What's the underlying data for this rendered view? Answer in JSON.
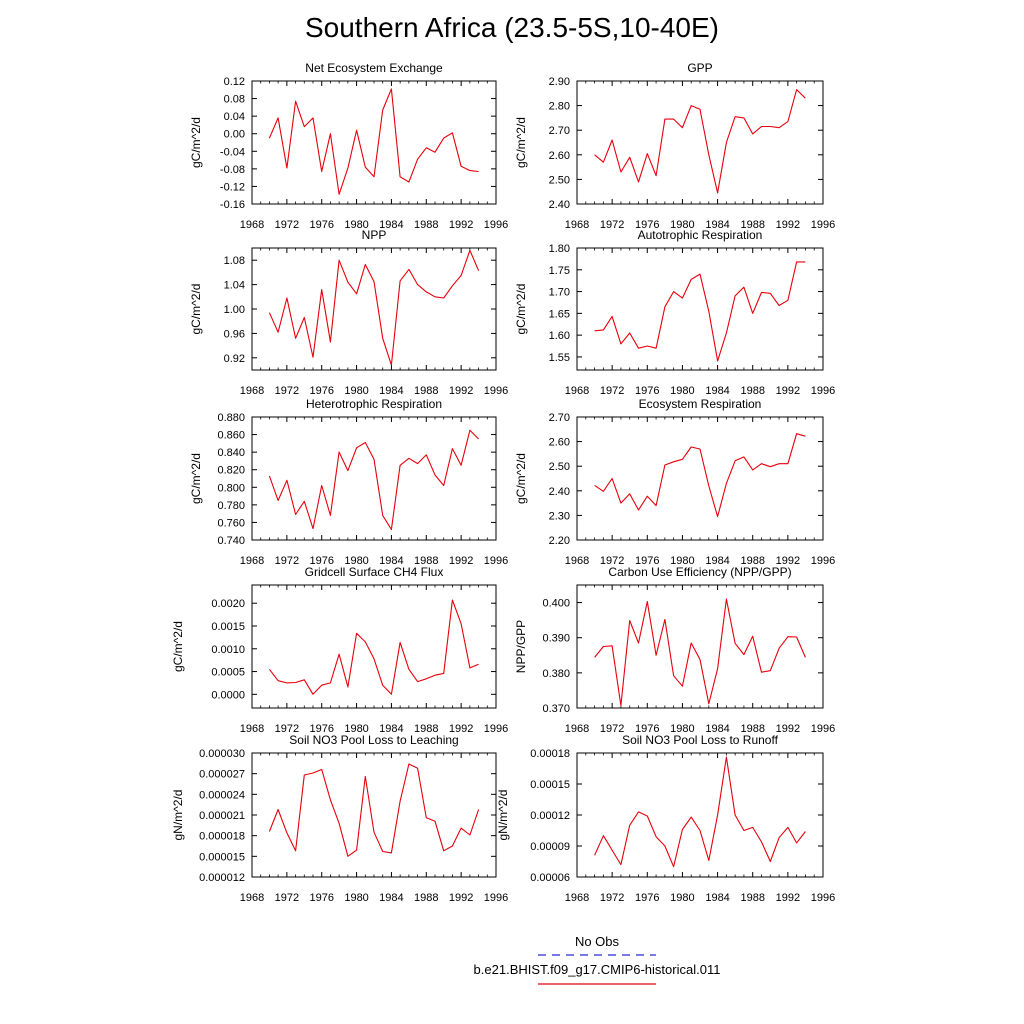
{
  "title": "Southern Africa (23.5-5S,10-40E)",
  "colors": {
    "model": "#e8000b",
    "obs": "#2b2bd8",
    "axis": "#000000"
  },
  "legend": {
    "entries": [
      {
        "label": "No Obs",
        "color": "#2b2bd8",
        "style": "dashed"
      },
      {
        "label": "b.e21.BHIST.f09_g17.CMIP6-historical.011",
        "color": "#e8000b",
        "style": "solid"
      }
    ]
  },
  "chart_data": [
    {
      "type": "line",
      "title": "Net Ecosystem Exchange",
      "ylabel": "gC/m^2/d",
      "xlim": [
        1968,
        1996
      ],
      "xticks": [
        "1968",
        "1972",
        "1976",
        "1980",
        "1984",
        "1988",
        "1992",
        "1996"
      ],
      "ylim": [
        -0.16,
        0.12
      ],
      "yticks": [
        "-0.16",
        "-0.12",
        "-0.08",
        "-0.04",
        "0.00",
        "0.04",
        "0.08",
        "0.12"
      ],
      "x": [
        1970,
        1971,
        1972,
        1973,
        1974,
        1975,
        1976,
        1977,
        1978,
        1979,
        1980,
        1981,
        1982,
        1983,
        1984,
        1985,
        1986,
        1987,
        1988,
        1989,
        1990,
        1991,
        1992,
        1993,
        1994
      ],
      "series": [
        {
          "values": [
            -0.01,
            0.036,
            -0.078,
            0.074,
            0.016,
            0.036,
            -0.086,
            0.0,
            -0.138,
            -0.078,
            0.008,
            -0.076,
            -0.098,
            0.054,
            0.102,
            -0.098,
            -0.11,
            -0.058,
            -0.032,
            -0.042,
            -0.01,
            0.002,
            -0.074,
            -0.084,
            -0.086
          ]
        }
      ]
    },
    {
      "type": "line",
      "title": "GPP",
      "ylabel": "gC/m^2/d",
      "xlim": [
        1968,
        1996
      ],
      "xticks": [
        "1968",
        "1972",
        "1976",
        "1980",
        "1984",
        "1988",
        "1992",
        "1996"
      ],
      "ylim": [
        2.4,
        2.9
      ],
      "yticks": [
        "2.40",
        "2.50",
        "2.60",
        "2.70",
        "2.80",
        "2.90"
      ],
      "x": [
        1970,
        1971,
        1972,
        1973,
        1974,
        1975,
        1976,
        1977,
        1978,
        1979,
        1980,
        1981,
        1982,
        1983,
        1984,
        1985,
        1986,
        1987,
        1988,
        1989,
        1990,
        1991,
        1992,
        1993,
        1994
      ],
      "series": [
        {
          "values": [
            2.6,
            2.57,
            2.66,
            2.53,
            2.59,
            2.49,
            2.605,
            2.515,
            2.745,
            2.745,
            2.71,
            2.8,
            2.785,
            2.6,
            2.445,
            2.65,
            2.755,
            2.75,
            2.685,
            2.715,
            2.715,
            2.71,
            2.735,
            2.865,
            2.83
          ]
        }
      ]
    },
    {
      "type": "line",
      "title": "NPP",
      "ylabel": "gC/m^2/d",
      "xlim": [
        1968,
        1996
      ],
      "xticks": [
        "1968",
        "1972",
        "1976",
        "1980",
        "1984",
        "1988",
        "1992",
        "1996"
      ],
      "ylim": [
        0.9,
        1.1
      ],
      "yticks": [
        "0.92",
        "0.96",
        "1.00",
        "1.04",
        "1.08"
      ],
      "x": [
        1970,
        1971,
        1972,
        1973,
        1974,
        1975,
        1976,
        1977,
        1978,
        1979,
        1980,
        1981,
        1982,
        1983,
        1984,
        1985,
        1986,
        1987,
        1988,
        1989,
        1990,
        1991,
        1992,
        1993,
        1994
      ],
      "series": [
        {
          "values": [
            0.994,
            0.962,
            1.018,
            0.952,
            0.986,
            0.921,
            1.032,
            0.946,
            1.08,
            1.044,
            1.025,
            1.073,
            1.045,
            0.952,
            0.908,
            1.046,
            1.065,
            1.04,
            1.028,
            1.02,
            1.018,
            1.038,
            1.055,
            1.096,
            1.063
          ]
        }
      ]
    },
    {
      "type": "line",
      "title": "Autotrophic Respiration",
      "ylabel": "gC/m^2/d",
      "xlim": [
        1968,
        1996
      ],
      "xticks": [
        "1968",
        "1972",
        "1976",
        "1980",
        "1984",
        "1988",
        "1992",
        "1996"
      ],
      "ylim": [
        1.52,
        1.8
      ],
      "yticks": [
        "1.55",
        "1.60",
        "1.65",
        "1.70",
        "1.75",
        "1.80"
      ],
      "x": [
        1970,
        1971,
        1972,
        1973,
        1974,
        1975,
        1976,
        1977,
        1978,
        1979,
        1980,
        1981,
        1982,
        1983,
        1984,
        1985,
        1986,
        1987,
        1988,
        1989,
        1990,
        1991,
        1992,
        1993,
        1994
      ],
      "series": [
        {
          "values": [
            1.61,
            1.612,
            1.643,
            1.58,
            1.605,
            1.57,
            1.575,
            1.57,
            1.665,
            1.7,
            1.685,
            1.728,
            1.74,
            1.655,
            1.541,
            1.605,
            1.69,
            1.71,
            1.65,
            1.698,
            1.696,
            1.668,
            1.68,
            1.768,
            1.768
          ]
        }
      ]
    },
    {
      "type": "line",
      "title": "Heterotrophic Respiration",
      "ylabel": "gC/m^2/d",
      "xlim": [
        1968,
        1996
      ],
      "xticks": [
        "1968",
        "1972",
        "1976",
        "1980",
        "1984",
        "1988",
        "1992",
        "1996"
      ],
      "ylim": [
        0.74,
        0.88
      ],
      "yticks": [
        "0.740",
        "0.760",
        "0.780",
        "0.800",
        "0.820",
        "0.840",
        "0.860",
        "0.880"
      ],
      "x": [
        1970,
        1971,
        1972,
        1973,
        1974,
        1975,
        1976,
        1977,
        1978,
        1979,
        1980,
        1981,
        1982,
        1983,
        1984,
        1985,
        1986,
        1987,
        1988,
        1989,
        1990,
        1991,
        1992,
        1993,
        1994
      ],
      "series": [
        {
          "values": [
            0.813,
            0.785,
            0.808,
            0.769,
            0.784,
            0.753,
            0.802,
            0.768,
            0.84,
            0.819,
            0.845,
            0.851,
            0.832,
            0.768,
            0.752,
            0.825,
            0.833,
            0.827,
            0.837,
            0.814,
            0.802,
            0.844,
            0.825,
            0.865,
            0.855
          ]
        }
      ]
    },
    {
      "type": "line",
      "title": "Ecosystem Respiration",
      "ylabel": "gC/m^2/d",
      "xlim": [
        1968,
        1996
      ],
      "xticks": [
        "1968",
        "1972",
        "1976",
        "1980",
        "1984",
        "1988",
        "1992",
        "1996"
      ],
      "ylim": [
        2.2,
        2.7
      ],
      "yticks": [
        "2.20",
        "2.30",
        "2.40",
        "2.50",
        "2.60",
        "2.70"
      ],
      "x": [
        1970,
        1971,
        1972,
        1973,
        1974,
        1975,
        1976,
        1977,
        1978,
        1979,
        1980,
        1981,
        1982,
        1983,
        1984,
        1985,
        1986,
        1987,
        1988,
        1989,
        1990,
        1991,
        1992,
        1993,
        1994
      ],
      "series": [
        {
          "values": [
            2.422,
            2.398,
            2.45,
            2.35,
            2.388,
            2.322,
            2.378,
            2.34,
            2.505,
            2.518,
            2.528,
            2.578,
            2.57,
            2.42,
            2.295,
            2.43,
            2.522,
            2.538,
            2.485,
            2.51,
            2.498,
            2.51,
            2.51,
            2.632,
            2.622
          ]
        }
      ]
    },
    {
      "type": "line",
      "title": "Gridcell Surface CH4 Flux",
      "ylabel": "gC/m^2/d",
      "xlim": [
        1968,
        1996
      ],
      "xticks": [
        "1968",
        "1972",
        "1976",
        "1980",
        "1984",
        "1988",
        "1992",
        "1996"
      ],
      "ylim": [
        -0.0003,
        0.0024
      ],
      "yticks": [
        "0.0000",
        "0.0005",
        "0.0010",
        "0.0015",
        "0.0020"
      ],
      "x": [
        1970,
        1971,
        1972,
        1973,
        1974,
        1975,
        1976,
        1977,
        1978,
        1979,
        1980,
        1981,
        1982,
        1983,
        1984,
        1985,
        1986,
        1987,
        1988,
        1989,
        1990,
        1991,
        1992,
        1993,
        1994
      ],
      "series": [
        {
          "values": [
            0.00055,
            0.0003,
            0.00025,
            0.00026,
            0.00032,
            0.0,
            0.0002,
            0.00025,
            0.00088,
            0.00016,
            0.00134,
            0.00115,
            0.00078,
            0.0002,
            0.0,
            0.00114,
            0.00055,
            0.00028,
            0.00034,
            0.00042,
            0.00046,
            0.00207,
            0.00155,
            0.00058,
            0.00066
          ]
        }
      ]
    },
    {
      "type": "line",
      "title": "Carbon Use Efficiency (NPP/GPP)",
      "ylabel": "NPP/GPP",
      "xlim": [
        1968,
        1996
      ],
      "xticks": [
        "1968",
        "1972",
        "1976",
        "1980",
        "1984",
        "1988",
        "1992",
        "1996"
      ],
      "ylim": [
        0.37,
        0.405
      ],
      "yticks": [
        "0.370",
        "0.380",
        "0.390",
        "0.400"
      ],
      "x": [
        1970,
        1971,
        1972,
        1973,
        1974,
        1975,
        1976,
        1977,
        1978,
        1979,
        1980,
        1981,
        1982,
        1983,
        1984,
        1985,
        1986,
        1987,
        1988,
        1989,
        1990,
        1991,
        1992,
        1993,
        1994
      ],
      "series": [
        {
          "values": [
            0.3844,
            0.3875,
            0.3877,
            0.3707,
            0.3949,
            0.3885,
            0.4003,
            0.385,
            0.3952,
            0.3792,
            0.3762,
            0.3885,
            0.3838,
            0.3712,
            0.3812,
            0.401,
            0.3884,
            0.3852,
            0.3904,
            0.3802,
            0.3806,
            0.387,
            0.3903,
            0.3902,
            0.3844
          ]
        }
      ]
    },
    {
      "type": "line",
      "title": "Soil NO3 Pool Loss to Leaching",
      "ylabel": "gN/m^2/d",
      "xlim": [
        1968,
        1996
      ],
      "xticks": [
        "1968",
        "1972",
        "1976",
        "1980",
        "1984",
        "1988",
        "1992",
        "1996"
      ],
      "ylim": [
        1.2e-05,
        3e-05
      ],
      "yticks": [
        "0.000012",
        "0.000015",
        "0.000018",
        "0.000021",
        "0.000024",
        "0.000027",
        "0.000030"
      ],
      "x": [
        1970,
        1971,
        1972,
        1973,
        1974,
        1975,
        1976,
        1977,
        1978,
        1979,
        1980,
        1981,
        1982,
        1983,
        1984,
        1985,
        1986,
        1987,
        1988,
        1989,
        1990,
        1991,
        1992,
        1993,
        1994
      ],
      "series": [
        {
          "values": [
            1.86e-05,
            2.18e-05,
            1.84e-05,
            1.58e-05,
            2.68e-05,
            2.71e-05,
            2.76e-05,
            2.32e-05,
            1.98e-05,
            1.5e-05,
            1.59e-05,
            2.66e-05,
            1.85e-05,
            1.57e-05,
            1.55e-05,
            2.3e-05,
            2.84e-05,
            2.78e-05,
            2.06e-05,
            2.01e-05,
            1.58e-05,
            1.65e-05,
            1.91e-05,
            1.81e-05,
            2.18e-05
          ]
        }
      ]
    },
    {
      "type": "line",
      "title": "Soil NO3 Pool Loss to Runoff",
      "ylabel": "gN/m^2/d",
      "xlim": [
        1968,
        1996
      ],
      "xticks": [
        "1968",
        "1972",
        "1976",
        "1980",
        "1984",
        "1988",
        "1992",
        "1996"
      ],
      "ylim": [
        6e-05,
        0.00018
      ],
      "yticks": [
        "0.00006",
        "0.00009",
        "0.00012",
        "0.00015",
        "0.00018"
      ],
      "x": [
        1970,
        1971,
        1972,
        1973,
        1974,
        1975,
        1976,
        1977,
        1978,
        1979,
        1980,
        1981,
        1982,
        1983,
        1984,
        1985,
        1986,
        1987,
        1988,
        1989,
        1990,
        1991,
        1992,
        1993,
        1994
      ],
      "series": [
        {
          "values": [
            8.1e-05,
            0.0001,
            8.6e-05,
            7.2e-05,
            0.00011,
            0.000123,
            0.000119,
            9.9e-05,
            9e-05,
            7e-05,
            0.000106,
            0.000118,
            0.000105,
            7.6e-05,
            0.00012,
            0.000176,
            0.00012,
            0.000105,
            0.000108,
            9.4e-05,
            7.5e-05,
            9.8e-05,
            0.000108,
            9.3e-05,
            0.000104
          ]
        }
      ]
    }
  ]
}
